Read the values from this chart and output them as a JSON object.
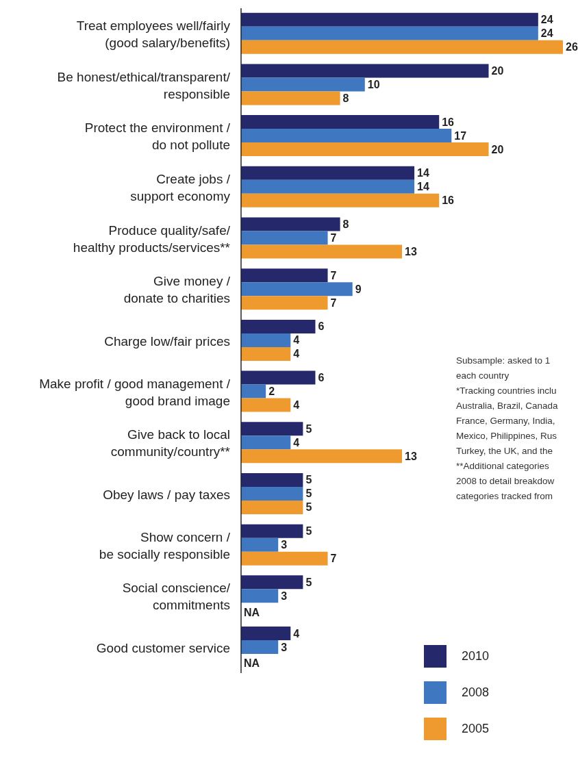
{
  "chart_data": {
    "type": "bar",
    "orientation": "horizontal",
    "categories": [
      "Treat employees well/fairly\n(good salary/benefits)",
      "Be honest/ethical/transparent/\nresponsible",
      "Protect the environment /\ndo not pollute",
      "Create jobs /\nsupport economy",
      "Produce quality/safe/\nhealthy products/services**",
      "Give money /\ndonate to charities",
      "Charge low/fair prices",
      "Make profit / good management /\ngood brand image",
      "Give back to local\ncommunity/country**",
      "Obey laws / pay taxes",
      "Show concern /\nbe socially responsible",
      "Social conscience/\ncommitments",
      "Good customer service"
    ],
    "series": [
      {
        "name": "2010",
        "color": "#25286b",
        "values": [
          24,
          20,
          16,
          14,
          8,
          7,
          6,
          6,
          5,
          5,
          5,
          5,
          4
        ],
        "value_labels": [
          "24",
          "20",
          "16",
          "14",
          "8",
          "7",
          "6",
          "6",
          "5",
          "5",
          "5",
          "5",
          "4"
        ]
      },
      {
        "name": "2008",
        "color": "#3f78c1",
        "values": [
          24,
          10,
          17,
          14,
          7,
          9,
          4,
          2,
          4,
          5,
          3,
          3,
          3
        ],
        "value_labels": [
          "24",
          "10",
          "17",
          "14",
          "7",
          "9",
          "4",
          "2",
          "4",
          "5",
          "3",
          "3",
          "3"
        ]
      },
      {
        "name": "2005",
        "color": "#ee9a2e",
        "values": [
          26,
          8,
          20,
          16,
          13,
          7,
          4,
          4,
          13,
          5,
          7,
          null,
          null
        ],
        "value_labels": [
          "26",
          "8",
          "20",
          "16",
          "13",
          "7",
          "4",
          "4",
          "13",
          "5",
          "7",
          "NA",
          "NA"
        ]
      }
    ],
    "legend": "bottom right",
    "grid": false,
    "annotations": [
      "Subsample: asked to 1",
      "each country",
      "*Tracking countries inclu",
      "Australia, Brazil, Canada",
      "France, Germany, India,",
      "Mexico, Philippines, Rus",
      "Turkey, the UK, and the",
      "**Additional categories",
      "2008 to detail breakdow",
      "categories tracked from"
    ]
  }
}
